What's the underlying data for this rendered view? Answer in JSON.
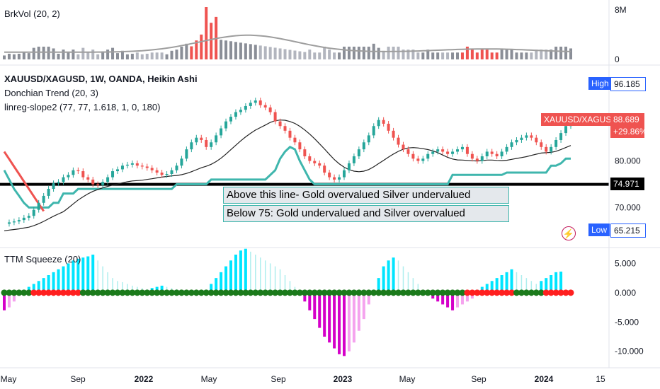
{
  "indicators": {
    "brkvol": "BrkVol (20, 2)",
    "symbol": "XAUUSD/XAGUSD, 1W, OANDA, Heikin Ashi",
    "donchian": "Donchian Trend (20, 3)",
    "linreg": "linreg-slope2 (77, 77, 1.618, 1, 0, 180)",
    "ttm": "TTM Squeeze (20)"
  },
  "annotations": {
    "above": "Above this line- Gold overvalued Silver undervalued",
    "below": "Below 75:  Gold undervalued and Silver overvalued"
  },
  "price_tags": {
    "high_label": "High",
    "high_value": "96.185",
    "low_label": "Low",
    "low_value": "65.215",
    "symbol_label": "XAUUSD/XAGUSD",
    "last_value": "88.689",
    "change": "+29.86%",
    "line_value": "74.971"
  },
  "icons": {
    "bolt": "lightning-bolt-icon"
  },
  "colors": {
    "up": "#26a69a",
    "down": "#ef5350",
    "teal_line": "#3fb6ad",
    "squeeze_on": "#1b7a1b",
    "squeeze_off": "#ff1f1f",
    "hist_pos_strong": "#00e5ff",
    "hist_pos_weak": "#aeeeee",
    "hist_neg_strong": "#d500c9",
    "hist_neg_weak": "#f5a3ee"
  },
  "chart_data": [
    {
      "type": "bar",
      "panel": "BrkVol (20, 2)",
      "y_ticks": [
        "8M",
        "0"
      ],
      "ylim": [
        0,
        8000000
      ]
    },
    {
      "type": "candlestick",
      "panel": "XAUUSD/XAGUSD, 1W, OANDA, Heikin Ashi",
      "y_ticks": [
        "88.689",
        "80.000",
        "70.000"
      ],
      "ylim": [
        62,
        100
      ],
      "x_ticks": [
        "May",
        "Sep",
        "2022",
        "May",
        "Sep",
        "2023",
        "May",
        "Sep",
        "2024",
        "15"
      ],
      "horizontal_line": 74.971,
      "high": 96.185,
      "low": 65.215,
      "last": 88.689,
      "closes": [
        66.5,
        66.8,
        67.0,
        67.3,
        67.8,
        68.2,
        69.5,
        71.0,
        72.5,
        74.0,
        75.2,
        75.5,
        76.5,
        77.0,
        78.0,
        77.8,
        76.5,
        76.0,
        75.0,
        74.8,
        75.5,
        76.5,
        77.8,
        78.2,
        79.0,
        79.2,
        79.5,
        79.0,
        78.8,
        78.5,
        78.0,
        77.5,
        77.0,
        77.2,
        78.0,
        79.0,
        80.5,
        82.5,
        84.0,
        85.0,
        84.5,
        83.0,
        84.0,
        85.5,
        87.0,
        88.5,
        89.5,
        90.5,
        91.0,
        91.8,
        92.5,
        93.0,
        92.0,
        91.5,
        90.5,
        88.5,
        87.5,
        86.5,
        85.0,
        84.0,
        82.5,
        81.0,
        80.0,
        79.5,
        79.0,
        77.5,
        76.5,
        76.0,
        76.5,
        78.0,
        79.5,
        81.0,
        82.5,
        84.0,
        85.5,
        87.5,
        88.8,
        88.0,
        86.5,
        85.0,
        83.5,
        82.5,
        81.5,
        80.5,
        80.0,
        80.5,
        81.5,
        82.0,
        82.5,
        82.0,
        81.5,
        82.0,
        82.5,
        83.0,
        81.5,
        80.5,
        80.0,
        81.0,
        82.0,
        81.5,
        81.0,
        82.0,
        83.0,
        84.0,
        84.5,
        85.0,
        85.5,
        85.0,
        84.0,
        83.0,
        82.0,
        83.0,
        84.5,
        86.0,
        87.5,
        88.7
      ],
      "donchian_trend": [
        78.0,
        76.0,
        74.0,
        72.5,
        71.0,
        70.0,
        70.0,
        70.0,
        70.0,
        70.0,
        71.0,
        71.0,
        73.0,
        73.0,
        73.0,
        74.0,
        74.0,
        74.0,
        74.0,
        74.0,
        74.0,
        74.0,
        74.0,
        74.0,
        74.0,
        74.0,
        74.0,
        74.0,
        74.0,
        74.0,
        74.0,
        74.0,
        74.0,
        74.0,
        74.0,
        75.0,
        75.0,
        75.0,
        75.0,
        75.0,
        75.0,
        75.0,
        76.0,
        76.0,
        76.0,
        76.0,
        76.0,
        76.0,
        76.0,
        76.0,
        76.0,
        76.0,
        76.0,
        76.0,
        77.0,
        78.0,
        80.5,
        82.0,
        83.0,
        82.5,
        80.0,
        78.0,
        76.0,
        75.0,
        75.0,
        75.0,
        75.0,
        75.0,
        75.0,
        75.0,
        75.0,
        75.0,
        75.0,
        75.0,
        75.0,
        75.0,
        75.0,
        75.0,
        75.0,
        75.0,
        75.0,
        75.0,
        75.0,
        75.0,
        75.0,
        75.0,
        75.0,
        75.0,
        75.0,
        75.0,
        75.0,
        77.0,
        77.0,
        77.0,
        77.0,
        77.0,
        77.0,
        77.0,
        77.0,
        77.0,
        77.0,
        77.0,
        77.5,
        77.5,
        77.5,
        77.5,
        77.5,
        77.5,
        77.5,
        77.5,
        77.5,
        79.0,
        79.0,
        79.5,
        80.5,
        80.5
      ]
    },
    {
      "type": "bar",
      "panel": "TTM Squeeze (20)",
      "y_ticks": [
        "5.000",
        "0.000",
        "-5.000",
        "-10.000"
      ],
      "ylim": [
        -11,
        6.5
      ],
      "momentum": [
        -3.0,
        -2.5,
        -1.5,
        -0.5,
        0.5,
        1.0,
        1.5,
        2.0,
        2.5,
        3.0,
        3.5,
        4.0,
        4.5,
        5.0,
        5.5,
        5.8,
        6.0,
        6.2,
        6.5,
        5.5,
        4.5,
        3.5,
        2.5,
        2.0,
        1.8,
        1.5,
        1.2,
        1.0,
        0.8,
        0.6,
        0.8,
        1.0,
        1.2,
        1.0,
        0.8,
        0.6,
        0.4,
        0.2,
        -0.3,
        -0.5,
        -0.2,
        0.5,
        1.5,
        2.5,
        3.5,
        4.5,
        5.5,
        6.5,
        7.2,
        7.5,
        7.0,
        6.5,
        6.0,
        5.5,
        5.0,
        4.5,
        4.0,
        3.0,
        2.0,
        1.0,
        -0.5,
        -1.5,
        -3.0,
        -4.5,
        -6.0,
        -7.5,
        -8.5,
        -9.5,
        -10.5,
        -10.8,
        -10.0,
        -8.5,
        -6.5,
        -4.5,
        -2.0,
        0.5,
        2.5,
        4.5,
        5.5,
        6.0,
        5.5,
        4.5,
        3.5,
        2.5,
        1.5,
        0.5,
        -0.5,
        -1.0,
        -1.5,
        -2.0,
        -2.5,
        -3.0,
        -2.5,
        -2.0,
        -1.5,
        -1.0,
        0.5,
        1.0,
        1.5,
        2.0,
        2.5,
        3.0,
        3.5,
        4.0,
        3.5,
        3.0,
        2.5,
        2.0,
        1.5,
        2.0,
        2.5,
        3.0,
        3.5,
        3.6
      ],
      "squeeze_states": "ggggggrrrrrrrrrrggggggggggggggggggggggggggggggggggggggggggggggggggggggggggggggggggggggggggggggrrrrrrrrrrggggggrrrrrrgggggg"
    }
  ]
}
